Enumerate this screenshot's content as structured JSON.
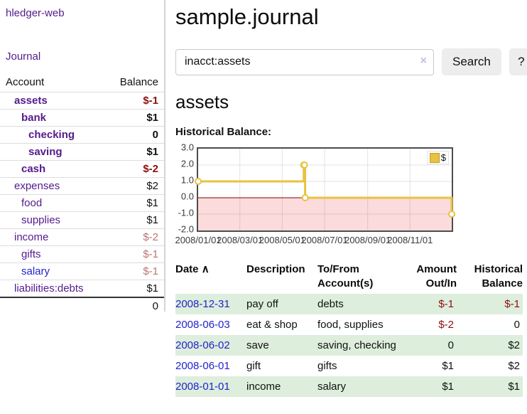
{
  "app": {
    "title": "hledger-web"
  },
  "sidebar": {
    "journal_link": "Journal",
    "accounts_table": {
      "account_header": "Account",
      "balance_header": "Balance",
      "rows": [
        {
          "name": "assets",
          "balance": "$-1",
          "level": 1,
          "in_query": true
        },
        {
          "name": "bank",
          "balance": "$1",
          "level": 2,
          "in_query": true
        },
        {
          "name": "checking",
          "balance": "0",
          "level": 3,
          "in_query": true
        },
        {
          "name": "saving",
          "balance": "$1",
          "level": 3,
          "in_query": true
        },
        {
          "name": "cash",
          "balance": "$-2",
          "level": 2,
          "in_query": true
        },
        {
          "name": "expenses",
          "balance": "$2",
          "level": 1,
          "in_query": false
        },
        {
          "name": "food",
          "balance": "$1",
          "level": 2,
          "in_query": false
        },
        {
          "name": "supplies",
          "balance": "$1",
          "level": 2,
          "in_query": false
        },
        {
          "name": "income",
          "balance": "$-2",
          "level": 1,
          "in_query": false
        },
        {
          "name": "gifts",
          "balance": "$-1",
          "level": 2,
          "in_query": false
        },
        {
          "name": "salary",
          "balance": "$-1",
          "level": 2,
          "in_query": false
        },
        {
          "name": "liabilities:debts",
          "balance": "$1",
          "level": 1,
          "in_query": false
        }
      ],
      "total": "0"
    }
  },
  "header": {
    "title": "sample.journal"
  },
  "search": {
    "value": "inacct:assets",
    "clear_icon": "×",
    "button_label": "Search",
    "help_label": "?"
  },
  "account_page": {
    "heading": "assets",
    "chart_label": "Historical Balance:"
  },
  "chart_data": {
    "type": "line",
    "steps": true,
    "series": [
      {
        "name": "$",
        "color": "#e8c240",
        "points": [
          [
            "2008-01-01",
            1
          ],
          [
            "2008-06-01",
            2
          ],
          [
            "2008-06-02",
            2
          ],
          [
            "2008-06-03",
            0
          ],
          [
            "2008-12-31",
            -1
          ]
        ]
      }
    ],
    "ylim": [
      -2,
      3
    ],
    "yticks": [
      "3.0",
      "2.0",
      "1.0",
      "0.0",
      "-1.0",
      "-2.0"
    ],
    "xticks": [
      "2008/01/01",
      "2008/03/01",
      "2008/05/01",
      "2008/07/01",
      "2008/09/01",
      "2008/11/01"
    ],
    "legend": "$",
    "legend_position": "top-right",
    "grid": true,
    "negative_fill": "#fbdbdb",
    "zero_line_color": "#8b0000",
    "border_color": "#4d4d4d"
  },
  "register_table": {
    "headers": {
      "date": "Date",
      "sort_icon": "∧",
      "description": "Description",
      "tofrom1": "To/From",
      "tofrom2": "Account(s)",
      "amount1": "Amount",
      "amount2": "Out/In",
      "balance1": "Historical",
      "balance2": "Balance"
    },
    "rows": [
      {
        "date": "2008-12-31",
        "description": "pay off",
        "accounts": "debts",
        "amount": "$-1",
        "balance": "$-1"
      },
      {
        "date": "2008-06-03",
        "description": "eat & shop",
        "accounts": "food, supplies",
        "amount": "$-2",
        "balance": "0"
      },
      {
        "date": "2008-06-02",
        "description": "save",
        "accounts": "saving, checking",
        "amount": "0",
        "balance": "$2"
      },
      {
        "date": "2008-06-01",
        "description": "gift",
        "accounts": "gifts",
        "amount": "$1",
        "balance": "$2"
      },
      {
        "date": "2008-01-01",
        "description": "income",
        "accounts": "salary",
        "amount": "$1",
        "balance": "$1"
      }
    ]
  },
  "colors": {
    "link_purple": "#551a8b",
    "link_blue": "#2222cc",
    "negative_strong": "#8b1010",
    "negative_muted": "#bd7373",
    "row_stripe_green": "#ddeedd",
    "chart_gold": "#e8c240"
  }
}
